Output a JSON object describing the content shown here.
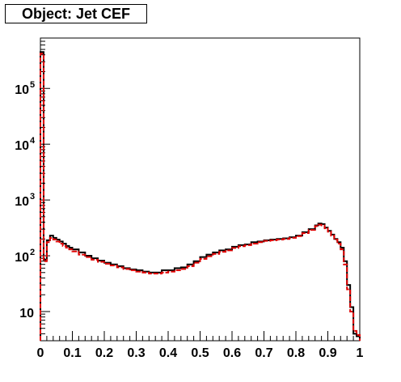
{
  "chart_data": {
    "type": "line",
    "title": "Object: Jet CEF",
    "xlabel": "",
    "ylabel": "",
    "xlim": [
      0,
      1
    ],
    "ylim": [
      3,
      800000
    ],
    "yscale": "log",
    "grid": false,
    "x_ticks": [
      "0",
      "0.1",
      "0.2",
      "0.3",
      "0.4",
      "0.5",
      "0.6",
      "0.7",
      "0.8",
      "0.9",
      "1"
    ],
    "y_ticks": [
      {
        "value": 10,
        "label": "10",
        "sup": ""
      },
      {
        "value": 100,
        "label": "10",
        "sup": "2"
      },
      {
        "value": 1000,
        "label": "10",
        "sup": "3"
      },
      {
        "value": 10000,
        "label": "10",
        "sup": "4"
      },
      {
        "value": 100000,
        "label": "10",
        "sup": "5"
      }
    ],
    "series": [
      {
        "color": "#000000",
        "style": "solid",
        "x": [
          0.0,
          0.01,
          0.02,
          0.03,
          0.04,
          0.05,
          0.06,
          0.07,
          0.08,
          0.09,
          0.1,
          0.12,
          0.14,
          0.16,
          0.18,
          0.2,
          0.22,
          0.24,
          0.26,
          0.28,
          0.3,
          0.32,
          0.34,
          0.36,
          0.38,
          0.4,
          0.42,
          0.44,
          0.46,
          0.48,
          0.5,
          0.52,
          0.54,
          0.56,
          0.58,
          0.6,
          0.62,
          0.64,
          0.66,
          0.68,
          0.7,
          0.72,
          0.74,
          0.76,
          0.78,
          0.8,
          0.82,
          0.84,
          0.86,
          0.87,
          0.88,
          0.89,
          0.9,
          0.91,
          0.92,
          0.93,
          0.94,
          0.95,
          0.96,
          0.97,
          0.98,
          0.99
        ],
        "values": [
          450000,
          85,
          190,
          230,
          210,
          195,
          180,
          165,
          150,
          140,
          130,
          115,
          100,
          90,
          82,
          75,
          70,
          65,
          60,
          57,
          55,
          52,
          50,
          50,
          55,
          55,
          60,
          62,
          70,
          80,
          95,
          105,
          115,
          125,
          130,
          145,
          155,
          160,
          175,
          180,
          190,
          195,
          200,
          205,
          215,
          230,
          265,
          300,
          350,
          380,
          370,
          320,
          280,
          240,
          200,
          175,
          140,
          80,
          30,
          12,
          4,
          3.6
        ]
      },
      {
        "color": "#e00000",
        "style": "dashed",
        "x": [
          0.0,
          0.01,
          0.02,
          0.03,
          0.04,
          0.05,
          0.06,
          0.07,
          0.08,
          0.09,
          0.1,
          0.12,
          0.14,
          0.16,
          0.18,
          0.2,
          0.22,
          0.24,
          0.26,
          0.28,
          0.3,
          0.32,
          0.34,
          0.36,
          0.38,
          0.4,
          0.42,
          0.44,
          0.46,
          0.48,
          0.5,
          0.52,
          0.54,
          0.56,
          0.58,
          0.6,
          0.62,
          0.64,
          0.66,
          0.68,
          0.7,
          0.72,
          0.74,
          0.76,
          0.78,
          0.8,
          0.82,
          0.84,
          0.86,
          0.87,
          0.88,
          0.89,
          0.9,
          0.91,
          0.92,
          0.93,
          0.94,
          0.95,
          0.96,
          0.97,
          0.98,
          0.99
        ],
        "values": [
          420000,
          80,
          175,
          210,
          195,
          180,
          165,
          150,
          140,
          130,
          120,
          105,
          95,
          85,
          78,
          72,
          67,
          62,
          58,
          55,
          52,
          50,
          48,
          48,
          50,
          52,
          55,
          58,
          65,
          75,
          88,
          98,
          108,
          118,
          125,
          138,
          148,
          155,
          165,
          175,
          185,
          190,
          195,
          200,
          210,
          225,
          255,
          290,
          340,
          360,
          350,
          310,
          270,
          230,
          195,
          165,
          130,
          70,
          25,
          10,
          4.5,
          3.8
        ]
      }
    ]
  }
}
